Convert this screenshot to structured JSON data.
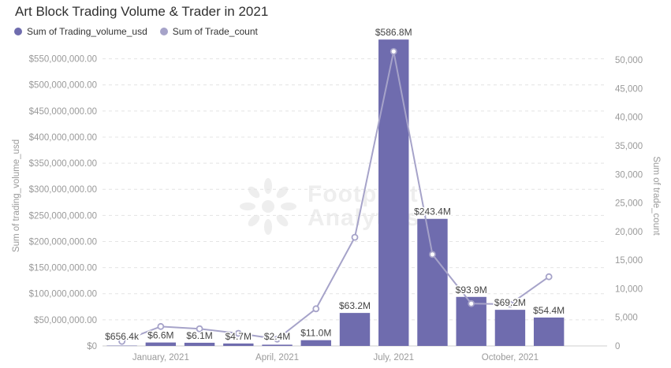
{
  "title": "Art Block Trading Volume & Trader in 2021",
  "legend": [
    {
      "label": "Sum of Trading_volume_usd",
      "color": "#6f6cae"
    },
    {
      "label": "Sum of Trade_count",
      "color": "#a6a3c9"
    }
  ],
  "watermark": {
    "line1": "Footprint",
    "line2": "Analytics"
  },
  "colors": {
    "bar": "#6f6cae",
    "line": "#a6a3c9",
    "grid": "#e4e4e4",
    "tick": "#9a9a9a"
  },
  "chart_data": {
    "type": "bar",
    "title": "Art Block Trading Volume & Trader in 2021",
    "xlabel": "",
    "ylabel": "Sum of trading_volume_usd",
    "y2label": "Sum of trade_count",
    "categories": [
      "2020-12",
      "2021-01",
      "2021-02",
      "2021-03",
      "2021-04",
      "2021-05",
      "2021-06",
      "2021-07",
      "2021-08",
      "2021-09",
      "2021-10",
      "2021-11",
      "2021-12"
    ],
    "x_tick_labels": [
      "January, 2021",
      "April, 2021",
      "July, 2021",
      "October, 2021"
    ],
    "x_tick_positions": [
      1,
      4,
      7,
      10
    ],
    "ylim": [
      0,
      575000000
    ],
    "y_ticks": [
      0,
      50000000,
      100000000,
      150000000,
      200000000,
      250000000,
      300000000,
      350000000,
      400000000,
      450000000,
      500000000,
      550000000
    ],
    "y_tick_labels": [
      "$0",
      "$50,000,000.00",
      "$100,000,000.00",
      "$150,000,000.00",
      "$200,000,000.00",
      "$250,000,000.00",
      "$300,000,000.00",
      "$350,000,000.00",
      "$400,000,000.00",
      "$450,000,000.00",
      "$500,000,000.00",
      "$550,000,000.00"
    ],
    "y2lim": [
      0,
      52500
    ],
    "y2_ticks": [
      0,
      5000,
      10000,
      15000,
      20000,
      25000,
      30000,
      35000,
      40000,
      45000,
      50000
    ],
    "y2_tick_labels": [
      "0",
      "5,000",
      "10,000",
      "15,000",
      "20,000",
      "25,000",
      "30,000",
      "35,000",
      "40,000",
      "45,000",
      "50,000"
    ],
    "grid": true,
    "legend_position": "top-left",
    "series": [
      {
        "name": "Sum of Trading_volume_usd",
        "type": "bar",
        "axis": "left",
        "values": [
          656400,
          6600000,
          6100000,
          4700000,
          2400000,
          11000000,
          63200000,
          586800000,
          243400000,
          93900000,
          69200000,
          54400000,
          null
        ],
        "labels": [
          "$656.4k",
          "$6.6M",
          "$6.1M",
          "$4.7M",
          "$2.4M",
          "$11.0M",
          "$63.2M",
          "$586.8M",
          "$243.4M",
          "$93.9M",
          "$69.2M",
          "$54.4M",
          null
        ]
      },
      {
        "name": "Sum of Trade_count",
        "type": "line",
        "axis": "right",
        "values": [
          800,
          3400,
          3000,
          2200,
          1200,
          6500,
          19000,
          51500,
          16000,
          7400,
          7300,
          12100,
          null
        ]
      }
    ]
  }
}
